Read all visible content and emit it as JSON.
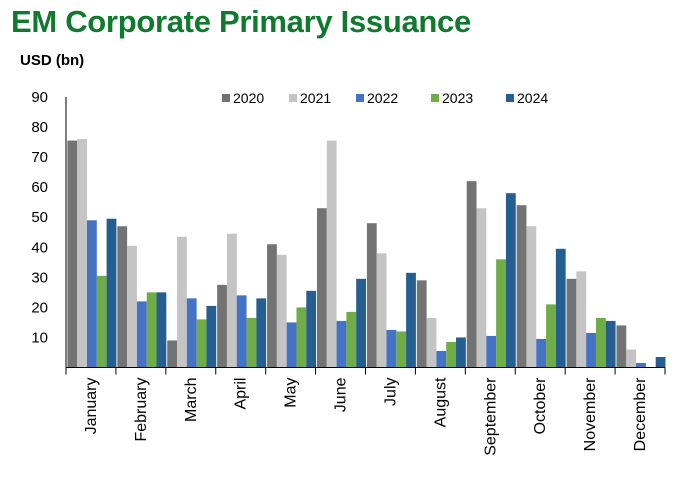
{
  "header": {
    "title": "EM Corporate Primary Issuance",
    "unit_label": "USD (bn)"
  },
  "chart_data": {
    "type": "bar",
    "title": "EM Corporate Primary Issuance",
    "ylabel": "USD (bn)",
    "xlabel": "",
    "ylim": [
      0,
      90
    ],
    "yticks": [
      10,
      20,
      30,
      40,
      50,
      60,
      70,
      80,
      90
    ],
    "grid": false,
    "legend_position": "top",
    "categories": [
      "January",
      "February",
      "March",
      "April",
      "May",
      "June",
      "July",
      "August",
      "September",
      "October",
      "November",
      "December"
    ],
    "series": [
      {
        "name": "2020",
        "color": "#737373",
        "values": [
          75.5,
          47,
          9,
          27.5,
          41,
          53,
          48,
          29,
          62,
          54,
          29.5,
          14
        ]
      },
      {
        "name": "2021",
        "color": "#c4c4c4",
        "values": [
          76,
          40.5,
          43.5,
          44.5,
          37.5,
          75.5,
          38,
          16.5,
          53,
          47,
          32,
          6
        ]
      },
      {
        "name": "2022",
        "color": "#4472c4",
        "values": [
          49,
          22,
          23,
          24,
          15,
          15.5,
          12.5,
          5.5,
          10.5,
          9.5,
          11.5,
          1.5
        ]
      },
      {
        "name": "2023",
        "color": "#70ad47",
        "values": [
          30.5,
          25,
          16,
          16.5,
          20,
          18.5,
          12,
          8.5,
          36,
          21,
          16.5,
          0
        ]
      },
      {
        "name": "2024",
        "color": "#255e91",
        "values": [
          49.5,
          25,
          20.5,
          23,
          25.5,
          29.5,
          31.5,
          10,
          58,
          39.5,
          15.5,
          3.5
        ]
      }
    ]
  }
}
